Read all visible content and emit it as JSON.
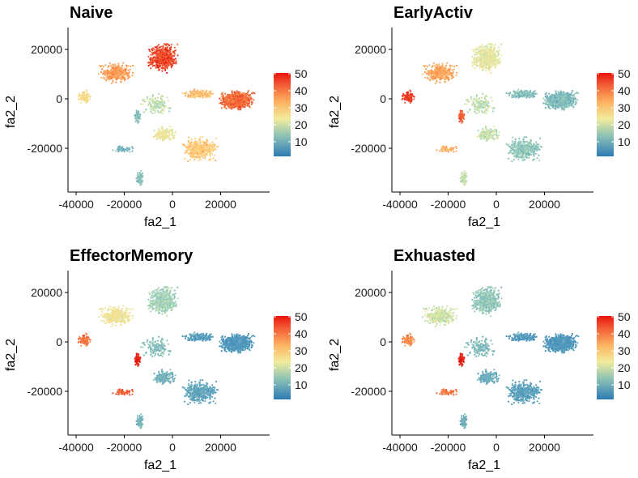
{
  "chart_data": [
    {
      "type": "scatter",
      "title": "Naive",
      "xlabel": "fa2_1",
      "ylabel": "fa2_2",
      "xlim": [
        -43000,
        37000
      ],
      "ylim": [
        -37000,
        28500
      ],
      "xticks": [
        -40000,
        -20000,
        0,
        20000
      ],
      "yticks": [
        20000,
        0,
        -20000
      ],
      "color_scale": {
        "range": [
          0,
          50
        ],
        "ticks": [
          10,
          20,
          30,
          40,
          50
        ]
      },
      "region_levels": {
        "top_lobe": 46,
        "upper_left_arm": 38,
        "right_cluster": 43,
        "left_tip": 30,
        "center_hole": 22,
        "left_red_spot": 16,
        "lower_left_spur": 14,
        "bottom_spur": 16,
        "lower_funnel": 33,
        "middle_diag": 26,
        "bridge": 34
      }
    },
    {
      "type": "scatter",
      "title": "EarlyActiv",
      "xlabel": "fa2_1",
      "ylabel": "fa2_2",
      "xlim": [
        -43000,
        37000
      ],
      "ylim": [
        -37000,
        28500
      ],
      "xticks": [
        -40000,
        -20000,
        0,
        20000
      ],
      "yticks": [
        20000,
        0,
        -20000
      ],
      "color_scale": {
        "range": [
          0,
          50
        ],
        "ticks": [
          10,
          20,
          30,
          40,
          50
        ]
      },
      "region_levels": {
        "top_lobe": 25,
        "upper_left_arm": 37,
        "right_cluster": 15,
        "left_tip": 47,
        "center_hole": 22,
        "left_red_spot": 44,
        "lower_left_spur": 36,
        "bottom_spur": 22,
        "lower_funnel": 17,
        "middle_diag": 22,
        "bridge": 15
      }
    },
    {
      "type": "scatter",
      "title": "EffectorMemory",
      "xlabel": "fa2_1",
      "ylabel": "fa2_2",
      "xlim": [
        -43000,
        37000
      ],
      "ylim": [
        -37000,
        28500
      ],
      "xticks": [
        -40000,
        -20000,
        0,
        20000
      ],
      "yticks": [
        20000,
        0,
        -20000
      ],
      "color_scale": {
        "range": [
          0,
          50
        ],
        "ticks": [
          10,
          20,
          30,
          40,
          50
        ]
      },
      "region_levels": {
        "top_lobe": 19,
        "upper_left_arm": 27,
        "right_cluster": 8,
        "left_tip": 42,
        "center_hole": 16,
        "left_red_spot": 50,
        "lower_left_spur": 44,
        "bottom_spur": 14,
        "lower_funnel": 11,
        "middle_diag": 13,
        "bridge": 9
      }
    },
    {
      "type": "scatter",
      "title": "Exhuasted",
      "xlabel": "fa2_1",
      "ylabel": "fa2_2",
      "xlim": [
        -43000,
        37000
      ],
      "ylim": [
        -37000,
        28500
      ],
      "xticks": [
        -40000,
        -20000,
        0,
        20000
      ],
      "yticks": [
        20000,
        0,
        -20000
      ],
      "color_scale": {
        "range": [
          0,
          50
        ],
        "ticks": [
          10,
          20,
          30,
          40,
          50
        ]
      },
      "region_levels": {
        "top_lobe": 17,
        "upper_left_arm": 23,
        "right_cluster": 8,
        "left_tip": 40,
        "center_hole": 15,
        "left_red_spot": 50,
        "lower_left_spur": 42,
        "bottom_spur": 13,
        "lower_funnel": 10,
        "middle_diag": 12,
        "bridge": 8
      }
    }
  ]
}
